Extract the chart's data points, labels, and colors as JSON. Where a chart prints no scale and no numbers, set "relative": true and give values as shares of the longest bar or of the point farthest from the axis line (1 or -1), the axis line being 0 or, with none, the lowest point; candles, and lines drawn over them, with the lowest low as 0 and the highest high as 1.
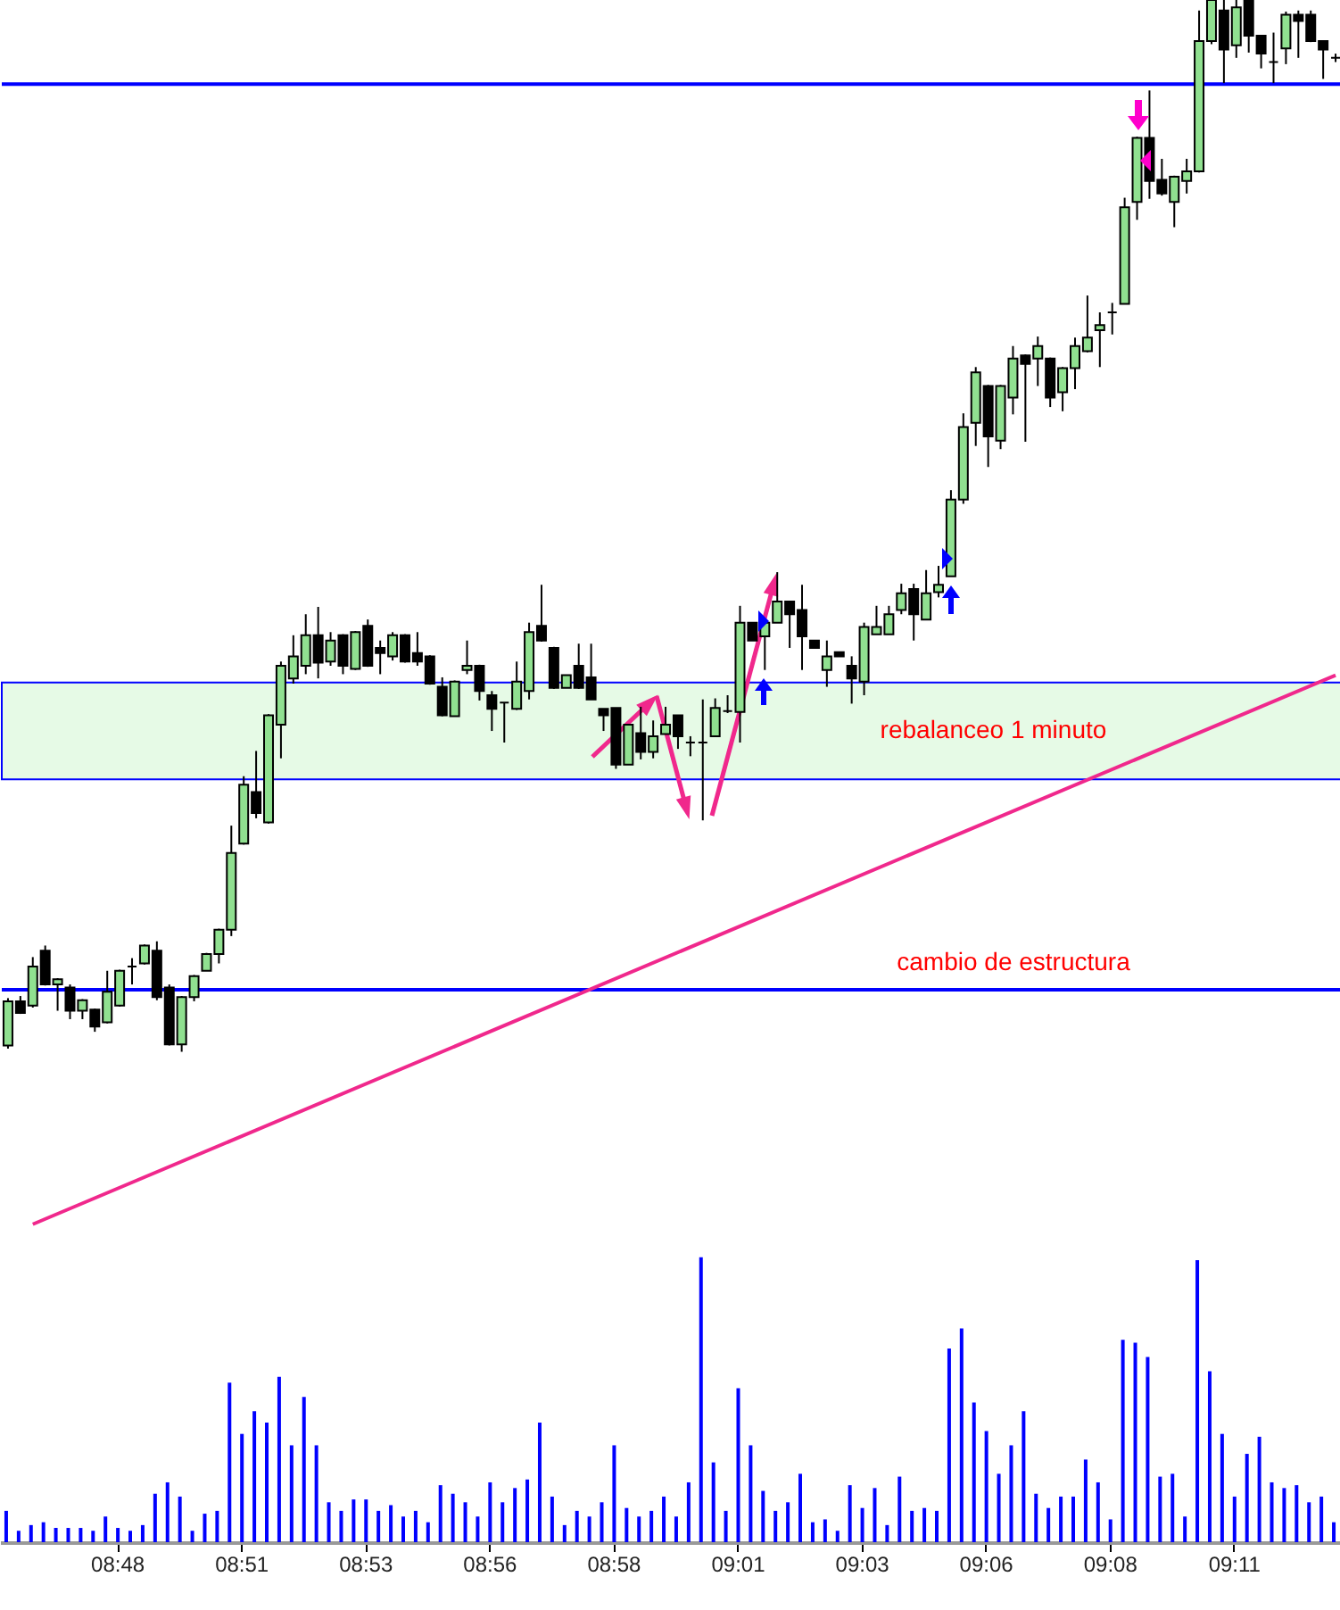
{
  "chart_data": [
    {
      "type": "candlestick",
      "relative": true,
      "tick_labels": false,
      "categories": [
        null,
        null,
        null,
        null,
        null,
        null,
        null,
        null,
        null,
        null,
        null,
        null,
        null,
        null,
        null,
        null,
        null,
        null,
        null,
        null,
        null,
        null,
        null,
        null,
        null,
        null,
        null,
        null,
        null,
        null,
        null,
        null,
        null,
        null,
        null,
        null,
        null,
        null,
        null,
        null,
        null,
        null,
        null,
        null,
        null,
        null,
        null,
        null,
        null,
        null,
        null,
        null,
        null,
        null,
        null,
        null,
        null,
        null,
        null,
        null,
        null,
        null,
        null,
        null,
        null,
        null,
        null,
        null,
        null,
        null,
        null,
        null,
        null,
        null,
        null,
        null,
        null,
        null,
        null,
        null,
        null,
        null,
        null,
        null,
        null,
        null,
        null,
        null,
        null,
        null,
        null,
        null,
        null,
        null,
        null,
        null,
        null,
        null,
        null,
        null,
        null,
        null,
        null,
        null,
        null,
        null,
        null,
        null
      ],
      "ohlc": [
        [
          0.006,
          0.051,
          0.003,
          0.048
        ],
        [
          0.048,
          0.053,
          0.036,
          0.037
        ],
        [
          0.044,
          0.09,
          0.042,
          0.081
        ],
        [
          0.096,
          0.101,
          0.063,
          0.064
        ],
        [
          0.064,
          0.07,
          0.039,
          0.069
        ],
        [
          0.061,
          0.064,
          0.031,
          0.039
        ],
        [
          0.039,
          0.05,
          0.031,
          0.049
        ],
        [
          0.04,
          0.041,
          0.019,
          0.024
        ],
        [
          0.028,
          0.077,
          0.027,
          0.057
        ],
        [
          0.044,
          0.078,
          0.043,
          0.077
        ],
        [
          0.081,
          0.089,
          0.064,
          0.081
        ],
        [
          0.084,
          0.102,
          0.083,
          0.101
        ],
        [
          0.096,
          0.105,
          0.049,
          0.052
        ],
        [
          0.061,
          0.064,
          0.006,
          0.007
        ],
        [
          0.007,
          0.053,
          0,
          0.052
        ],
        [
          0.052,
          0.073,
          0.048,
          0.072
        ],
        [
          0.077,
          0.094,
          0.077,
          0.093
        ],
        [
          0.093,
          0.117,
          0.084,
          0.116
        ],
        [
          0.116,
          0.215,
          0.11,
          0.189
        ],
        [
          0.198,
          0.262,
          0.197,
          0.254
        ],
        [
          0.247,
          0.286,
          0.222,
          0.227
        ],
        [
          0.218,
          0.321,
          0.217,
          0.32
        ],
        [
          0.311,
          0.371,
          0.279,
          0.367
        ],
        [
          0.355,
          0.396,
          0.35,
          0.376
        ],
        [
          0.367,
          0.416,
          0.359,
          0.396
        ],
        [
          0.396,
          0.423,
          0.355,
          0.37
        ],
        [
          0.371,
          0.399,
          0.367,
          0.391
        ],
        [
          0.396,
          0.397,
          0.359,
          0.367
        ],
        [
          0.364,
          0.4,
          0.363,
          0.399
        ],
        [
          0.405,
          0.411,
          0.366,
          0.367
        ],
        [
          0.384,
          0.391,
          0.359,
          0.379
        ],
        [
          0.376,
          0.399,
          0.372,
          0.396
        ],
        [
          0.396,
          0.397,
          0.37,
          0.371
        ],
        [
          0.379,
          0.399,
          0.367,
          0.371
        ],
        [
          0.376,
          0.377,
          0.349,
          0.35
        ],
        [
          0.347,
          0.356,
          0.319,
          0.32
        ],
        [
          0.319,
          0.353,
          0.319,
          0.352
        ],
        [
          0.363,
          0.391,
          0.359,
          0.367
        ],
        [
          0.367,
          0.368,
          0.334,
          0.343
        ],
        [
          0.339,
          0.343,
          0.305,
          0.326
        ],
        [
          0.332,
          0.332,
          0.294,
          0.332
        ],
        [
          0.326,
          0.371,
          0.325,
          0.352
        ],
        [
          0.343,
          0.408,
          0.335,
          0.399
        ],
        [
          0.405,
          0.444,
          0.39,
          0.391
        ],
        [
          0.384,
          0.385,
          0.345,
          0.346
        ],
        [
          0.346,
          0.358,
          0.346,
          0.358
        ],
        [
          0.367,
          0.388,
          0.345,
          0.346
        ],
        [
          0.356,
          0.388,
          0.335,
          0.335
        ],
        [
          0.326,
          0.326,
          0.305,
          0.32
        ],
        [
          0.327,
          0.327,
          0.269,
          0.273
        ],
        [
          0.273,
          0.311,
          0.273,
          0.311
        ],
        [
          0.303,
          0.328,
          0.278,
          0.285
        ],
        [
          0.285,
          0.315,
          0.279,
          0.3
        ],
        [
          0.302,
          0.328,
          0.302,
          0.311
        ],
        [
          0.32,
          0.32,
          0.288,
          0.3
        ],
        [
          0.294,
          0.3,
          0.281,
          0.294
        ],
        [
          0.294,
          0.335,
          0.22,
          0.294
        ],
        [
          0.3,
          0.336,
          0.3,
          0.327
        ],
        [
          0.324,
          0.339,
          0.322,
          0.324
        ],
        [
          0.323,
          0.424,
          0.294,
          0.408
        ],
        [
          0.408,
          0.408,
          0.391,
          0.391
        ],
        [
          0.395,
          0.408,
          0.363,
          0.408
        ],
        [
          0.408,
          0.456,
          0.408,
          0.428
        ],
        [
          0.428,
          0.428,
          0.384,
          0.416
        ],
        [
          0.42,
          0.444,
          0.363,
          0.395
        ],
        [
          0.391,
          0.391,
          0.384,
          0.384
        ],
        [
          0.363,
          0.391,
          0.347,
          0.376
        ],
        [
          0.38,
          0.38,
          0.376,
          0.376
        ],
        [
          0.367,
          0.376,
          0.331,
          0.355
        ],
        [
          0.352,
          0.408,
          0.339,
          0.404
        ],
        [
          0.397,
          0.424,
          0.397,
          0.404
        ],
        [
          0.397,
          0.424,
          0.397,
          0.416
        ],
        [
          0.42,
          0.445,
          0.416,
          0.436
        ],
        [
          0.44,
          0.445,
          0.391,
          0.416
        ],
        [
          0.411,
          0.458,
          0.411,
          0.436
        ],
        [
          0.437,
          0.462,
          0.432,
          0.444
        ],
        [
          0.452,
          0.534,
          0.452,
          0.525
        ],
        [
          0.525,
          0.607,
          0.521,
          0.594
        ],
        [
          0.598,
          0.651,
          0.576,
          0.646
        ],
        [
          0.633,
          0.634,
          0.556,
          0.585
        ],
        [
          0.581,
          0.634,
          0.573,
          0.633
        ],
        [
          0.622,
          0.671,
          0.606,
          0.659
        ],
        [
          0.662,
          0.663,
          0.58,
          0.654
        ],
        [
          0.659,
          0.68,
          0.633,
          0.671
        ],
        [
          0.659,
          0.66,
          0.613,
          0.622
        ],
        [
          0.627,
          0.651,
          0.609,
          0.65
        ],
        [
          0.65,
          0.679,
          0.63,
          0.671
        ],
        [
          0.666,
          0.719,
          0.665,
          0.679
        ],
        [
          0.686,
          0.703,
          0.651,
          0.691
        ],
        [
          0.703,
          0.712,
          0.682,
          0.703
        ],
        [
          0.711,
          0.812,
          0.711,
          0.803
        ],
        [
          0.808,
          0.87,
          0.791,
          0.869
        ],
        [
          0.869,
          0.914,
          0.811,
          0.828
        ],
        [
          0.829,
          0.849,
          0.814,
          0.816
        ],
        [
          0.808,
          0.833,
          0.784,
          0.832
        ],
        [
          0.828,
          0.849,
          0.816,
          0.837
        ],
        [
          0.837,
          0.99,
          0.836,
          0.961
        ],
        [
          0.961,
          1,
          0.958,
          1
        ],
        [
          0.99,
          1,
          0.921,
          0.953
        ],
        [
          0.957,
          1,
          0.945,
          0.993
        ],
        [
          1,
          1,
          0.95,
          0.966
        ],
        [
          0.966,
          0.966,
          0.935,
          0.949
        ],
        [
          0.941,
          0.969,
          0.921,
          0.941
        ],
        [
          0.954,
          0.989,
          0.939,
          0.986
        ],
        [
          0.986,
          0.99,
          0.945,
          0.98
        ],
        [
          0.986,
          0.99,
          0.96,
          0.961
        ],
        [
          0.961,
          0.961,
          0.925,
          0.953
        ],
        [
          0.945,
          0.949,
          0.941,
          0.945
        ]
      ],
      "series": [
        {
          "type": "line",
          "color": "#f0288c",
          "values": [
            null,
            null,
            -0.164,
            null,
            null,
            null,
            null,
            null,
            null,
            null,
            null,
            null,
            null,
            null,
            null,
            null,
            null,
            null,
            null,
            null,
            null,
            null,
            null,
            null,
            null,
            null,
            null,
            null,
            null,
            null,
            null,
            null,
            null,
            null,
            null,
            null,
            null,
            null,
            null,
            null,
            null,
            null,
            null,
            null,
            null,
            null,
            null,
            null,
            null,
            null,
            null,
            null,
            null,
            null,
            null,
            null,
            null,
            null,
            null,
            null,
            null,
            null,
            null,
            null,
            null,
            null,
            null,
            null,
            null,
            null,
            null,
            null,
            null,
            null,
            null,
            null,
            null,
            null,
            null,
            null,
            null,
            null,
            null,
            null,
            null,
            null,
            null,
            null,
            null,
            null,
            null,
            null,
            null,
            null,
            null,
            null,
            null,
            null,
            null,
            null,
            null,
            null,
            null,
            null,
            null,
            null,
            null,
            0.358
          ]
        }
      ],
      "ref_lines": [
        {
          "axis": "y",
          "value": 0.92,
          "color": "#0000ff"
        },
        {
          "axis": "y",
          "value": 0.059,
          "label": "cambio de estructura",
          "color": "#0000ff"
        }
      ],
      "bands": [
        {
          "axis": "y",
          "from": 0.259,
          "to": 0.351,
          "label": "rebalanceo 1 minuto",
          "color": "#e6fae6"
        }
      ]
    },
    {
      "type": "bar",
      "relative": true,
      "tick_labels": "x",
      "color": "#0000ff",
      "categories": [
        null,
        null,
        null,
        null,
        null,
        null,
        null,
        null,
        null,
        "08:48",
        null,
        null,
        null,
        null,
        null,
        null,
        null,
        null,
        null,
        "08:51",
        null,
        null,
        null,
        null,
        null,
        null,
        null,
        null,
        null,
        "08:53",
        null,
        null,
        null,
        null,
        null,
        null,
        null,
        null,
        null,
        "08:56",
        null,
        null,
        null,
        null,
        null,
        null,
        null,
        null,
        null,
        "08:58",
        null,
        null,
        null,
        null,
        null,
        null,
        null,
        null,
        null,
        "09:01",
        null,
        null,
        null,
        null,
        null,
        null,
        null,
        null,
        null,
        "09:03",
        null,
        null,
        null,
        null,
        null,
        null,
        null,
        null,
        null,
        "09:06",
        null,
        null,
        null,
        null,
        null,
        null,
        null,
        null,
        null,
        "09:08",
        null,
        null,
        null,
        null,
        null,
        null,
        null,
        null,
        null,
        "09:11",
        null,
        null,
        null,
        null,
        null,
        null,
        null,
        null
      ],
      "values": [
        0.11,
        0.04,
        0.06,
        0.07,
        0.05,
        0.05,
        0.05,
        0.04,
        0.09,
        0.05,
        0.04,
        0.06,
        0.17,
        0.21,
        0.16,
        0.04,
        0.1,
        0.11,
        0.56,
        0.38,
        0.46,
        0.42,
        0.58,
        0.34,
        0.51,
        0.34,
        0.14,
        0.11,
        0.15,
        0.15,
        0.11,
        0.13,
        0.09,
        0.11,
        0.07,
        0.2,
        0.17,
        0.14,
        0.09,
        0.21,
        0.14,
        0.19,
        0.22,
        0.42,
        0.16,
        0.06,
        0.11,
        0.09,
        0.14,
        0.34,
        0.12,
        0.09,
        0.11,
        0.16,
        0.09,
        0.21,
        1,
        0.28,
        0.11,
        0.54,
        0.34,
        0.18,
        0.11,
        0.14,
        0.24,
        0.07,
        0.08,
        0.04,
        0.2,
        0.12,
        0.19,
        0.06,
        0.23,
        0.11,
        0.12,
        0.11,
        0.68,
        0.75,
        0.49,
        0.39,
        0.24,
        0.34,
        0.46,
        0.17,
        0.12,
        0.16,
        0.16,
        0.29,
        0.21,
        0.08,
        0.71,
        0.7,
        0.65,
        0.23,
        0.24,
        0.09,
        0.99,
        0.6,
        0.38,
        0.16,
        0.31,
        0.37,
        0.21,
        0.19,
        0.2,
        0.14,
        0.16,
        0.07
      ]
    }
  ]
}
